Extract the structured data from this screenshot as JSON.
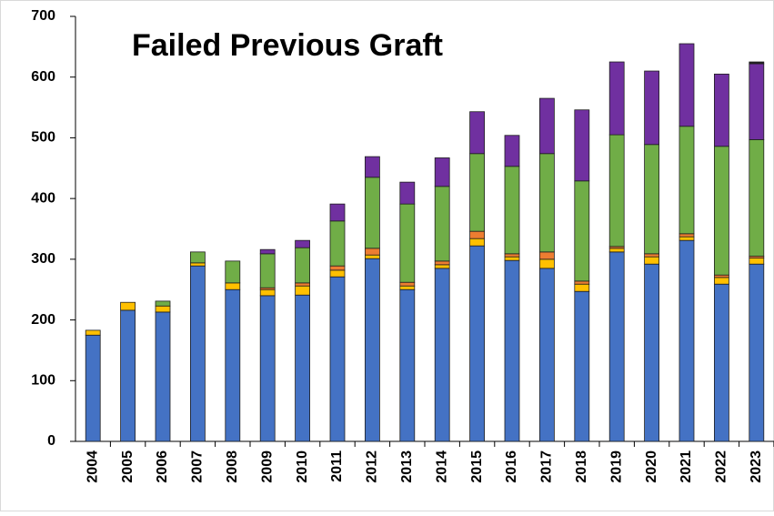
{
  "chart_data": {
    "type": "stacked-bar",
    "title": "Failed Previous Graft",
    "categories": [
      "2004",
      "2005",
      "2006",
      "2007",
      "2008",
      "2009",
      "2010",
      "2011",
      "2012",
      "2013",
      "2014",
      "2015",
      "2016",
      "2017",
      "2018",
      "2019",
      "2020",
      "2021",
      "2022",
      "2023"
    ],
    "series": [
      {
        "color": "#4472c4",
        "values": [
          175,
          216,
          213,
          289,
          250,
          240,
          241,
          271,
          301,
          250,
          285,
          322,
          298,
          285,
          247,
          312,
          292,
          331,
          259,
          292
        ]
      },
      {
        "color": "#ffc000",
        "values": [
          8,
          13,
          10,
          5,
          11,
          10,
          15,
          11,
          6,
          6,
          6,
          12,
          6,
          15,
          12,
          6,
          12,
          6,
          11,
          10
        ]
      },
      {
        "color": "#ed7d31",
        "values": [
          0,
          0,
          0,
          0,
          0,
          3,
          5,
          7,
          11,
          6,
          6,
          12,
          5,
          12,
          5,
          3,
          5,
          5,
          4,
          3
        ]
      },
      {
        "color": "#70ad47",
        "values": [
          0,
          0,
          8,
          18,
          36,
          56,
          58,
          74,
          117,
          129,
          123,
          128,
          144,
          162,
          165,
          184,
          180,
          177,
          212,
          192
        ]
      },
      {
        "color": "#7030a0",
        "values": [
          0,
          0,
          0,
          0,
          0,
          7,
          12,
          28,
          34,
          36,
          47,
          69,
          51,
          91,
          117,
          120,
          121,
          136,
          119,
          125
        ]
      },
      {
        "color": "#222222",
        "values": [
          0,
          0,
          0,
          0,
          0,
          0,
          0,
          0,
          0,
          0,
          0,
          0,
          0,
          0,
          0,
          0,
          0,
          0,
          0,
          3
        ]
      }
    ],
    "ylim": [
      0,
      700
    ],
    "yticks": [
      0,
      100,
      200,
      300,
      400,
      500,
      600,
      700
    ]
  }
}
